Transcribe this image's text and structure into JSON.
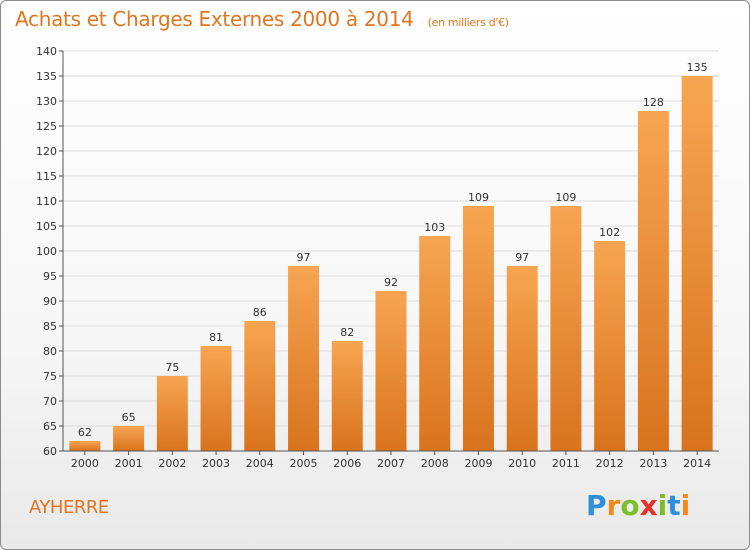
{
  "header": {
    "title": "Achats et Charges Externes 2000 à 2014",
    "subtitle": "(en milliers d'€)"
  },
  "footer": {
    "commune": "AYHERRE",
    "logo_letters": [
      "P",
      "r",
      "o",
      "x",
      "i",
      "t",
      "i"
    ],
    "logo_colors": [
      "#2f8fd8",
      "#f08a1c",
      "#7cbf2a",
      "#e4342a",
      "#7cbf2a",
      "#2f8fd8",
      "#f08a1c"
    ]
  },
  "colors": {
    "bar_light": "#f7a552",
    "bar_dark": "#d9731d",
    "grid": "#dcdcdc",
    "axis": "#555555"
  },
  "chart_data": {
    "type": "bar",
    "title": "Achats et Charges Externes 2000 à 2014",
    "subtitle": "(en milliers d'€)",
    "categories": [
      "2000",
      "2001",
      "2002",
      "2003",
      "2004",
      "2005",
      "2006",
      "2007",
      "2008",
      "2009",
      "2010",
      "2011",
      "2012",
      "2013",
      "2014"
    ],
    "values": [
      62,
      65,
      75,
      81,
      86,
      97,
      82,
      92,
      103,
      109,
      97,
      109,
      102,
      128,
      135
    ],
    "data_labels": [
      "62",
      "65",
      "75",
      "81",
      "86",
      "97",
      "82",
      "92",
      "103",
      "109",
      "97",
      "109",
      "102",
      "128",
      "135"
    ],
    "ylim": [
      60,
      140
    ],
    "yticks": [
      60,
      65,
      70,
      75,
      80,
      85,
      90,
      95,
      100,
      105,
      110,
      115,
      120,
      125,
      130,
      135,
      140
    ],
    "grid": true,
    "xlabel": "",
    "ylabel": ""
  }
}
